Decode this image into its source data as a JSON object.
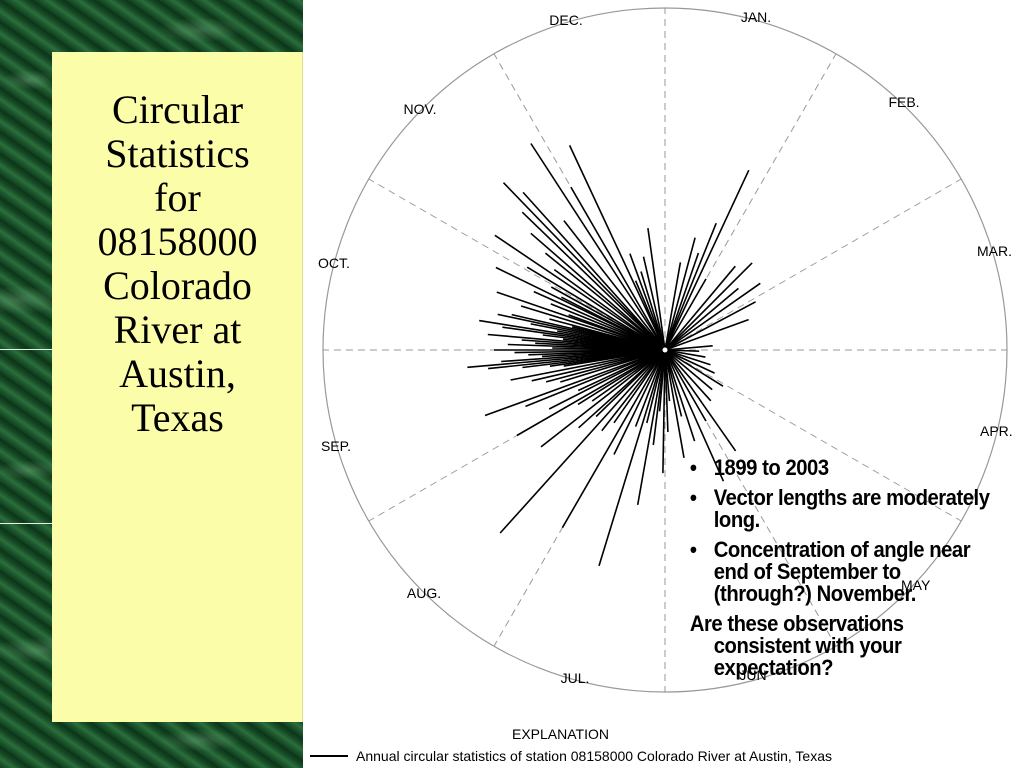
{
  "title_lines": [
    "Circular",
    "Statistics",
    "for",
    "08158000",
    "Colorado",
    "River at",
    "Austin,",
    "Texas"
  ],
  "months": [
    "JAN.",
    "FEB.",
    "MAR.",
    "APR.",
    "MAY",
    "JUN",
    "JUL.",
    "AUG.",
    "SEP.",
    "OCT.",
    "NOV.",
    "DEC."
  ],
  "bullets": [
    "1899 to 2003",
    "Vector lengths are moderately long.",
    "Concentration of angle near end of September to (through?) November."
  ],
  "question": "Are these observations consistent with your expectation?",
  "explanation_title": "EXPLANATION",
  "legend_text": "Annual circular statistics of station 08158000 Colorado River at Austin, Texas",
  "colors": {
    "marble": "#184c26",
    "panel": "#fbfda8",
    "vectors": "#000000",
    "grid": "#999999"
  },
  "chart_data": {
    "type": "circular",
    "vectors_angle_deg": [
      335,
      330,
      327,
      322,
      318,
      316,
      314,
      311,
      309,
      306,
      304,
      301,
      299,
      297,
      296,
      294,
      292,
      290,
      289,
      287,
      285,
      284,
      283,
      282,
      281,
      280,
      279,
      278,
      277,
      276,
      275,
      274,
      273,
      272,
      271,
      270,
      269,
      268,
      267,
      266,
      265,
      264,
      263,
      262,
      261,
      259,
      257,
      255,
      253,
      250,
      248,
      245,
      243,
      240,
      238,
      235,
      232,
      228,
      226,
      222,
      218,
      215,
      210,
      206,
      201,
      197,
      194,
      190,
      187,
      185,
      181,
      178,
      175,
      170,
      166,
      162,
      156,
      150,
      145,
      138,
      130,
      122,
      115,
      108,
      100,
      92,
      85,
      70,
      62,
      55,
      50,
      45,
      40,
      30,
      25,
      22,
      19,
      15,
      10,
      352,
      347,
      343,
      340,
      337
    ],
    "vectors_length": [
      0.66,
      0.55,
      0.72,
      0.48,
      0.62,
      0.68,
      0.58,
      0.52,
      0.45,
      0.4,
      0.6,
      0.47,
      0.38,
      0.34,
      0.55,
      0.42,
      0.36,
      0.3,
      0.52,
      0.44,
      0.35,
      0.28,
      0.46,
      0.5,
      0.4,
      0.32,
      0.55,
      0.48,
      0.36,
      0.3,
      0.52,
      0.42,
      0.38,
      0.46,
      0.33,
      0.5,
      0.44,
      0.4,
      0.36,
      0.48,
      0.58,
      0.52,
      0.42,
      0.34,
      0.3,
      0.46,
      0.4,
      0.36,
      0.32,
      0.56,
      0.44,
      0.28,
      0.38,
      0.5,
      0.3,
      0.26,
      0.46,
      0.34,
      0.28,
      0.72,
      0.3,
      0.26,
      0.6,
      0.34,
      0.24,
      0.66,
      0.22,
      0.46,
      0.28,
      0.18,
      0.36,
      0.24,
      0.15,
      0.32,
      0.2,
      0.28,
      0.42,
      0.24,
      0.36,
      0.2,
      0.18,
      0.2,
      0.16,
      0.14,
      0.12,
      0.1,
      0.14,
      0.26,
      0.3,
      0.34,
      0.28,
      0.36,
      0.32,
      0.24,
      0.58,
      0.4,
      0.3,
      0.34,
      0.26,
      0.36,
      0.28,
      0.24,
      0.3,
      0.22
    ]
  }
}
